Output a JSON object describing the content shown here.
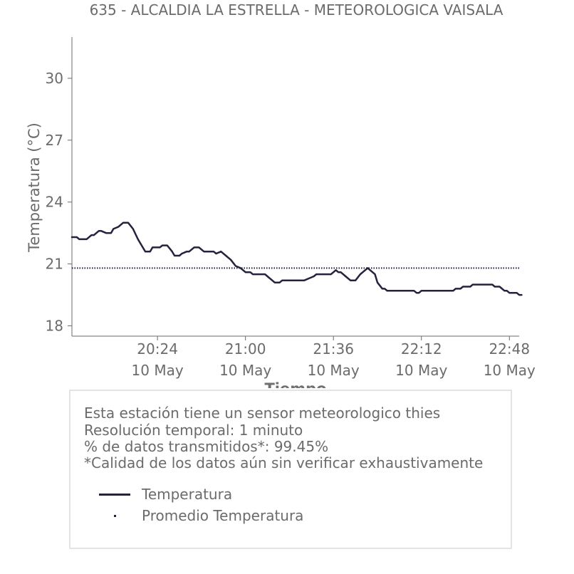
{
  "chart_data": {
    "type": "line",
    "title": "635 - ALCALDIA LA ESTRELLA - METEOROLOGICA VAISALA",
    "xlabel": "Tiempo",
    "ylabel": "Temperatura (°C)",
    "ylim": [
      17.5,
      32
    ],
    "xlim": [
      "19:49",
      "22:52"
    ],
    "yticks": [
      18,
      21,
      24,
      27,
      30
    ],
    "xticks": [
      {
        "time": "20:24",
        "date": "10 May"
      },
      {
        "time": "21:00",
        "date": "10 May"
      },
      {
        "time": "21:36",
        "date": "10 May"
      },
      {
        "time": "22:12",
        "date": "10 May"
      },
      {
        "time": "22:48",
        "date": "10 May"
      }
    ],
    "grid": false,
    "series": [
      {
        "name": "Temperatura",
        "color": "#23233f",
        "style": "solid",
        "points": [
          [
            "19:49",
            22.3
          ],
          [
            "19:51",
            22.3
          ],
          [
            "19:52",
            22.2
          ],
          [
            "19:54",
            22.2
          ],
          [
            "19:55",
            22.2
          ],
          [
            "19:57",
            22.4
          ],
          [
            "19:58",
            22.4
          ],
          [
            "20:00",
            22.6
          ],
          [
            "20:01",
            22.6
          ],
          [
            "20:03",
            22.5
          ],
          [
            "20:05",
            22.5
          ],
          [
            "20:06",
            22.7
          ],
          [
            "20:08",
            22.8
          ],
          [
            "20:10",
            23.0
          ],
          [
            "20:12",
            23.0
          ],
          [
            "20:14",
            22.7
          ],
          [
            "20:16",
            22.2
          ],
          [
            "20:18",
            21.8
          ],
          [
            "20:19",
            21.6
          ],
          [
            "20:21",
            21.6
          ],
          [
            "20:22",
            21.8
          ],
          [
            "20:25",
            21.8
          ],
          [
            "20:26",
            21.9
          ],
          [
            "20:28",
            21.9
          ],
          [
            "20:30",
            21.6
          ],
          [
            "20:31",
            21.4
          ],
          [
            "20:33",
            21.4
          ],
          [
            "20:34",
            21.5
          ],
          [
            "20:36",
            21.6
          ],
          [
            "20:37",
            21.6
          ],
          [
            "20:39",
            21.8
          ],
          [
            "20:41",
            21.8
          ],
          [
            "20:43",
            21.6
          ],
          [
            "20:46",
            21.6
          ],
          [
            "20:47",
            21.6
          ],
          [
            "20:48",
            21.5
          ],
          [
            "20:50",
            21.6
          ],
          [
            "20:52",
            21.4
          ],
          [
            "20:54",
            21.2
          ],
          [
            "20:56",
            20.9
          ],
          [
            "20:58",
            20.8
          ],
          [
            "21:00",
            20.6
          ],
          [
            "21:02",
            20.6
          ],
          [
            "21:03",
            20.5
          ],
          [
            "21:08",
            20.5
          ],
          [
            "21:09",
            20.4
          ],
          [
            "21:11",
            20.2
          ],
          [
            "21:12",
            20.1
          ],
          [
            "21:14",
            20.1
          ],
          [
            "21:15",
            20.2
          ],
          [
            "21:24",
            20.2
          ],
          [
            "21:26",
            20.3
          ],
          [
            "21:28",
            20.4
          ],
          [
            "21:29",
            20.5
          ],
          [
            "21:35",
            20.5
          ],
          [
            "21:37",
            20.7
          ],
          [
            "21:38",
            20.6
          ],
          [
            "21:39",
            20.6
          ],
          [
            "21:41",
            20.4
          ],
          [
            "21:43",
            20.2
          ],
          [
            "21:45",
            20.2
          ],
          [
            "21:47",
            20.5
          ],
          [
            "21:48",
            20.6
          ],
          [
            "21:50",
            20.8
          ],
          [
            "21:51",
            20.7
          ],
          [
            "21:53",
            20.5
          ],
          [
            "21:54",
            20.1
          ],
          [
            "21:56",
            19.8
          ],
          [
            "21:57",
            19.8
          ],
          [
            "21:58",
            19.7
          ],
          [
            "22:09",
            19.7
          ],
          [
            "22:10",
            19.6
          ],
          [
            "22:11",
            19.6
          ],
          [
            "22:12",
            19.7
          ],
          [
            "22:25",
            19.7
          ],
          [
            "22:26",
            19.8
          ],
          [
            "22:28",
            19.8
          ],
          [
            "22:29",
            19.9
          ],
          [
            "22:32",
            19.9
          ],
          [
            "22:33",
            20.0
          ],
          [
            "22:41",
            20.0
          ],
          [
            "22:42",
            19.9
          ],
          [
            "22:44",
            19.9
          ],
          [
            "22:46",
            19.7
          ],
          [
            "22:47",
            19.7
          ],
          [
            "22:48",
            19.6
          ],
          [
            "22:51",
            19.6
          ],
          [
            "22:52",
            19.5
          ],
          [
            "22:53",
            19.5
          ]
        ]
      },
      {
        "name": "Promedio Temperatura",
        "color": "#23233f",
        "style": "dotted",
        "value": 20.8
      }
    ]
  },
  "info": {
    "line1": "Esta estación tiene un sensor meteorologico thies",
    "line2": "Resolución temporal: 1 minuto",
    "line3": "% de datos transmitidos*: 99.45%",
    "line4": "*Calidad de los datos aún sin verificar exhaustivamente"
  },
  "legend": [
    {
      "label": "Temperatura",
      "kind": "line"
    },
    {
      "label": "Promedio Temperatura",
      "kind": "dot"
    }
  ]
}
